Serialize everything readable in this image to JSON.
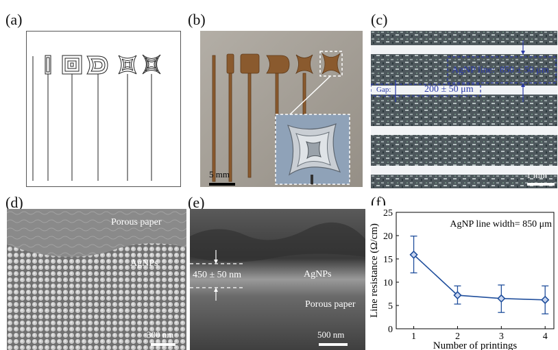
{
  "panels": {
    "a": {
      "label": "(a)"
    },
    "b": {
      "label": "(b)",
      "scale_bar": "5 mm"
    },
    "c": {
      "label": "(c)",
      "line_label": "AgNP line:",
      "line_value": "850 ± 50 μm",
      "gap_label": "Gap:",
      "gap_value": "200 ± 50 μm",
      "scale_bar": "1 mm"
    },
    "d": {
      "label": "(d)",
      "top_text": "Porous paper",
      "mid_text": "AgNPs",
      "scale_bar": "300 nm"
    },
    "e": {
      "label": "(e)",
      "thickness": "450 ± 50 nm",
      "agnp_text": "AgNPs",
      "paper_text": "Porous paper",
      "scale_bar": "500 nm"
    },
    "f": {
      "label": "(f)"
    }
  },
  "chart_data": {
    "type": "line",
    "title": "",
    "annotation": "AgNP line width= 850 μm",
    "xlabel": "Number of printings",
    "ylabel": "Line resistance (Ω/cm)",
    "x": [
      1,
      2,
      3,
      4
    ],
    "y": [
      15.9,
      7.2,
      6.5,
      6.2
    ],
    "err_low": [
      12.0,
      5.3,
      3.5,
      3.2
    ],
    "err_high": [
      19.9,
      9.2,
      9.4,
      9.2
    ],
    "xlim": [
      0.6,
      4.2
    ],
    "ylim": [
      0,
      25
    ],
    "xticks": [
      1,
      2,
      3,
      4
    ],
    "yticks": [
      0,
      5,
      10,
      15,
      20,
      25
    ],
    "color": "#1f4e9c",
    "marker": "diamond"
  }
}
